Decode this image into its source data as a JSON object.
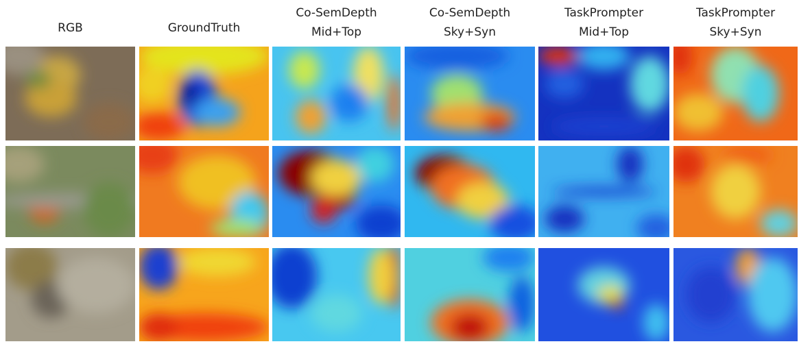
{
  "columns": [
    {
      "lines": [
        "RGB"
      ]
    },
    {
      "lines": [
        "GroundTruth"
      ]
    },
    {
      "lines": [
        "Co-SemDepth",
        "Mid+Top"
      ]
    },
    {
      "lines": [
        "Co-SemDepth",
        "Sky+Syn"
      ]
    },
    {
      "lines": [
        "TaskPrompter",
        "Mid+Top"
      ]
    },
    {
      "lines": [
        "TaskPrompter",
        "Sky+Syn"
      ]
    }
  ]
}
